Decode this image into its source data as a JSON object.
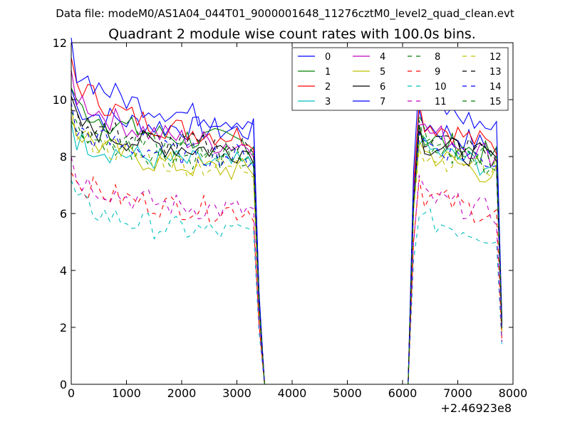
{
  "suptitle": "Data file: modeM0/AS1A04_044T01_9000001648_11276cztM0_level2_quad_clean.evt",
  "chart_data": {
    "type": "line",
    "title": "Quadrant 2 module wise count rates with 100.0s bins.",
    "xlabel": "",
    "ylabel": "",
    "x_offset_label": "+2.46923e8",
    "xlim": [
      0,
      8000
    ],
    "ylim": [
      0,
      12
    ],
    "x_ticks": [
      0,
      1000,
      2000,
      3000,
      4000,
      5000,
      6000,
      7000,
      8000
    ],
    "y_ticks": [
      0,
      2,
      4,
      6,
      8,
      10,
      12
    ],
    "grid": false,
    "legend_position": "top-right",
    "legend_columns": 4,
    "segments": [
      [
        0,
        3500
      ],
      [
        6100,
        7800
      ]
    ],
    "series": [
      {
        "name": "0",
        "color": "#0000ff",
        "dash": "solid",
        "level1": 9.8,
        "end1": 8.9,
        "level2": 9.2,
        "end2": 8.2
      },
      {
        "name": "1",
        "color": "#008000",
        "dash": "solid",
        "level1": 9.9,
        "end1": 8.5,
        "level2": 8.7,
        "end2": 8.0
      },
      {
        "name": "2",
        "color": "#ff0000",
        "dash": "solid",
        "level1": 10.8,
        "end1": 8.7,
        "level2": 9.3,
        "end2": 8.3
      },
      {
        "name": "3",
        "color": "#00bfbf",
        "dash": "solid",
        "level1": 8.7,
        "end1": 7.7,
        "level2": 8.3,
        "end2": 7.6
      },
      {
        "name": "4",
        "color": "#bf00bf",
        "dash": "solid",
        "level1": 10.3,
        "end1": 8.4,
        "level2": 9.0,
        "end2": 8.0
      },
      {
        "name": "5",
        "color": "#bfbf00",
        "dash": "solid",
        "level1": 9.0,
        "end1": 7.5,
        "level2": 8.2,
        "end2": 7.3
      },
      {
        "name": "6",
        "color": "#000000",
        "dash": "solid",
        "level1": 9.3,
        "end1": 8.2,
        "level2": 8.5,
        "end2": 7.9
      },
      {
        "name": "7",
        "color": "#0000ff",
        "dash": "solid",
        "level1": 11.2,
        "end1": 9.3,
        "level2": 10.0,
        "end2": 8.9
      },
      {
        "name": "8",
        "color": "#008000",
        "dash": "dashed",
        "level1": 9.0,
        "end1": 7.9,
        "level2": 8.4,
        "end2": 7.6
      },
      {
        "name": "9",
        "color": "#ff0000",
        "dash": "dashed",
        "level1": 7.2,
        "end1": 6.1,
        "level2": 6.7,
        "end2": 5.9
      },
      {
        "name": "10",
        "color": "#00bfbf",
        "dash": "dashed",
        "level1": 6.5,
        "end1": 5.3,
        "level2": 5.8,
        "end2": 5.2
      },
      {
        "name": "11",
        "color": "#bf00bf",
        "dash": "dashed",
        "level1": 7.4,
        "end1": 6.1,
        "level2": 6.6,
        "end2": 6.0
      },
      {
        "name": "12",
        "color": "#bfbf00",
        "dash": "dashed",
        "level1": 8.9,
        "end1": 7.6,
        "level2": 8.1,
        "end2": 7.6
      },
      {
        "name": "13",
        "color": "#000000",
        "dash": "dashed",
        "level1": 9.4,
        "end1": 8.3,
        "level2": 8.7,
        "end2": 8.1
      },
      {
        "name": "14",
        "color": "#0000ff",
        "dash": "dashed",
        "level1": 9.0,
        "end1": 8.0,
        "level2": 8.5,
        "end2": 7.8
      },
      {
        "name": "15",
        "color": "#008000",
        "dash": "dashed",
        "level1": 9.2,
        "end1": 8.1,
        "level2": 8.6,
        "end2": 7.9
      }
    ]
  }
}
